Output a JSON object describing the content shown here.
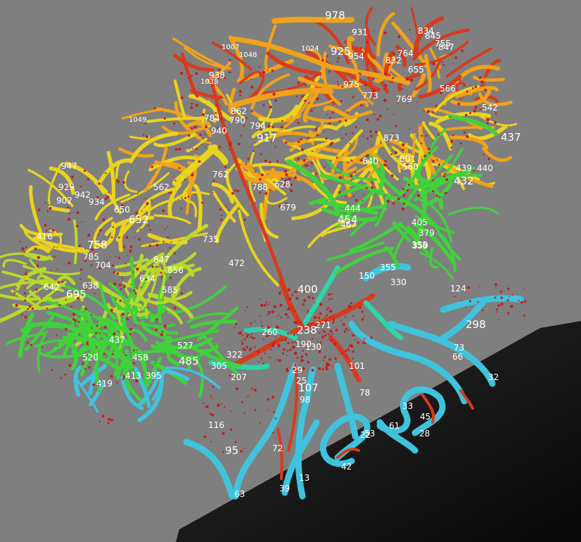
{
  "viewer": {
    "background": "#7f7f7f",
    "scan_slice_color": "#111111"
  },
  "palette": {
    "arterial_blue": "#3fc3dd",
    "cyan_green": "#2fd3a8",
    "green": "#3fd23a",
    "yellow_green": "#b8d82a",
    "yellow": "#e8d31f",
    "orange": "#f0a21a",
    "red": "#d83a1e",
    "speckle_red": "#c81e1e"
  },
  "segment_labels": [
    "978",
    "931",
    "834",
    "845",
    "847",
    "755",
    "1024",
    "925",
    "954",
    "764",
    "832",
    "655",
    "1007",
    "1048",
    "1038",
    "938",
    "975",
    "773",
    "769",
    "566",
    "542",
    "437",
    "1049",
    "862",
    "790",
    "784",
    "794",
    "940",
    "917",
    "873",
    "801",
    "640",
    "560",
    "439",
    "440",
    "432",
    "947",
    "929",
    "942",
    "902",
    "934",
    "650",
    "652",
    "562",
    "762",
    "788",
    "628",
    "679",
    "444",
    "454",
    "467",
    "405",
    "379",
    "358",
    "359",
    "416",
    "758",
    "785",
    "704",
    "735",
    "847",
    "856",
    "472",
    "400",
    "355",
    "150",
    "330",
    "124",
    "642",
    "638",
    "695",
    "634",
    "585",
    "437",
    "520",
    "527",
    "458",
    "485",
    "419",
    "413",
    "395",
    "322",
    "305",
    "207",
    "238",
    "260",
    "271",
    "190",
    "130",
    "101",
    "98",
    "107",
    "29",
    "25",
    "78",
    "73",
    "66",
    "32",
    "298",
    "45",
    "61",
    "53",
    "33",
    "28",
    "116",
    "95",
    "72",
    "63",
    "39",
    "13",
    "42",
    "22"
  ]
}
